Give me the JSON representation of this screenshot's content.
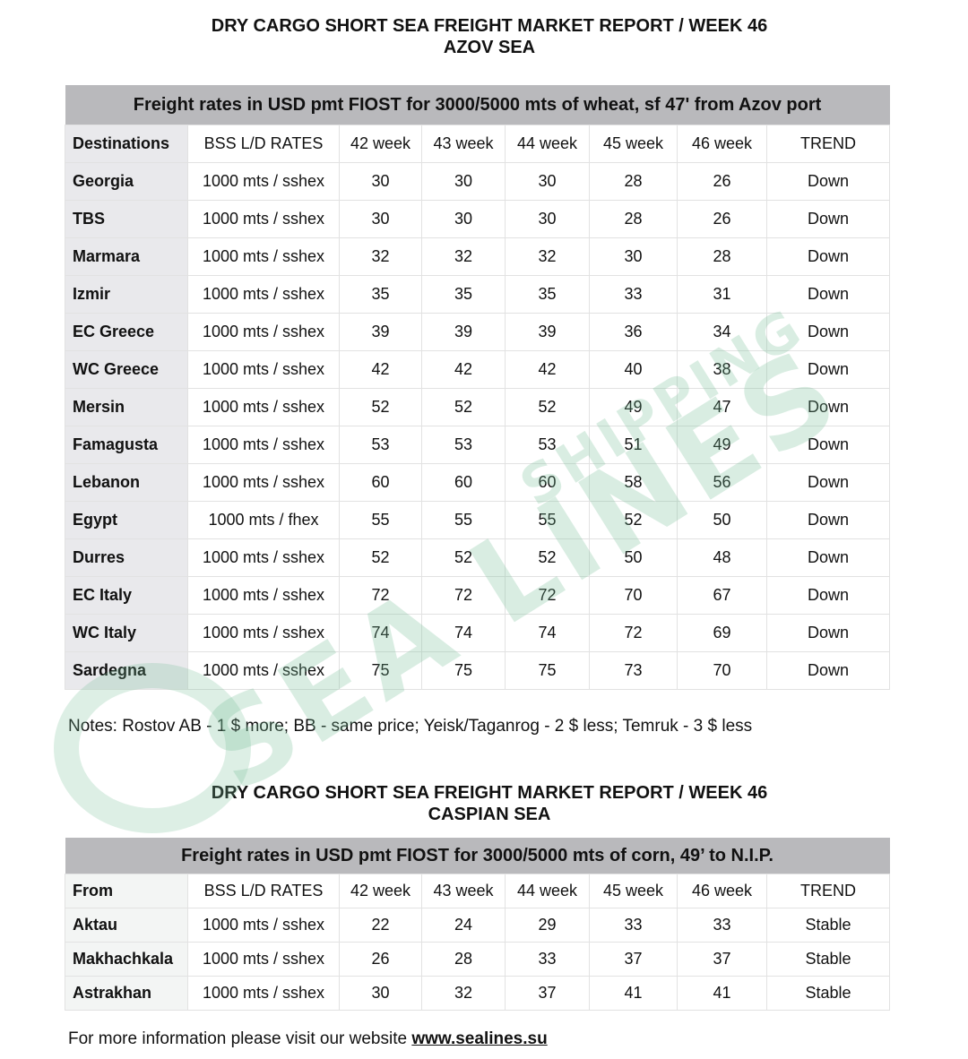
{
  "azov": {
    "title1": "DRY CARGO SHORT SEA FREIGHT MARKET REPORT / WEEK 46",
    "title2": "AZOV SEA",
    "caption": "Freight rates in USD pmt FIOST for 3000/5000 mts of wheat, sf 47' from Azov port",
    "headers": [
      "Destinations",
      "BSS L/D RATES",
      "42 week",
      "43 week",
      "44 week",
      "45 week",
      "46 week",
      "TREND"
    ],
    "rows": [
      [
        "Georgia",
        "1000 mts / sshex",
        "30",
        "30",
        "30",
        "28",
        "26",
        "Down"
      ],
      [
        "TBS",
        "1000 mts / sshex",
        "30",
        "30",
        "30",
        "28",
        "26",
        "Down"
      ],
      [
        "Marmara",
        "1000 mts / sshex",
        "32",
        "32",
        "32",
        "30",
        "28",
        "Down"
      ],
      [
        "Izmir",
        "1000 mts / sshex",
        "35",
        "35",
        "35",
        "33",
        "31",
        "Down"
      ],
      [
        "EC Greece",
        "1000 mts / sshex",
        "39",
        "39",
        "39",
        "36",
        "34",
        "Down"
      ],
      [
        "WC Greece",
        "1000 mts / sshex",
        "42",
        "42",
        "42",
        "40",
        "38",
        "Down"
      ],
      [
        "Mersin",
        "1000 mts / sshex",
        "52",
        "52",
        "52",
        "49",
        "47",
        "Down"
      ],
      [
        "Famagusta",
        "1000 mts / sshex",
        "53",
        "53",
        "53",
        "51",
        "49",
        "Down"
      ],
      [
        "Lebanon",
        "1000 mts / sshex",
        "60",
        "60",
        "60",
        "58",
        "56",
        "Down"
      ],
      [
        "Egypt",
        "1000 mts / fhex",
        "55",
        "55",
        "55",
        "52",
        "50",
        "Down"
      ],
      [
        "Durres",
        "1000 mts / sshex",
        "52",
        "52",
        "52",
        "50",
        "48",
        "Down"
      ],
      [
        "EC Italy",
        "1000 mts / sshex",
        "72",
        "72",
        "72",
        "70",
        "67",
        "Down"
      ],
      [
        "WC Italy",
        "1000 mts / sshex",
        "74",
        "74",
        "74",
        "72",
        "69",
        "Down"
      ],
      [
        "Sardegna",
        "1000 mts / sshex",
        "75",
        "75",
        "75",
        "73",
        "70",
        "Down"
      ]
    ],
    "notes": "Notes: Rostov AB - 1 $ more; BB - same price; Yeisk/Taganrog - 2 $ less; Temruk - 3 $ less"
  },
  "caspian": {
    "title1": "DRY CARGO SHORT SEA FREIGHT MARKET REPORT / WEEK 46",
    "title2": "CASPIAN SEA",
    "caption": "Freight rates in USD pmt FIOST for 3000/5000 mts of corn, 49’ to N.I.P.",
    "headers": [
      "From",
      "BSS L/D RATES",
      "42 week",
      "43 week",
      "44 week",
      "45 week",
      "46 week",
      "TREND"
    ],
    "rows": [
      [
        "Aktau",
        "1000 mts / sshex",
        "22",
        "24",
        "29",
        "33",
        "33",
        "Stable"
      ],
      [
        "Makhachkala",
        "1000 mts / sshex",
        "26",
        "28",
        "33",
        "37",
        "37",
        "Stable"
      ],
      [
        "Astrakhan",
        "1000 mts / sshex",
        "30",
        "32",
        "37",
        "41",
        "41",
        "Stable"
      ]
    ]
  },
  "footer": {
    "text": "For more information please visit our website ",
    "link": "www.sealines.su"
  },
  "watermark": {
    "main": "SEA LINES",
    "sub": "SHIPPING",
    "color": "#78be96"
  }
}
